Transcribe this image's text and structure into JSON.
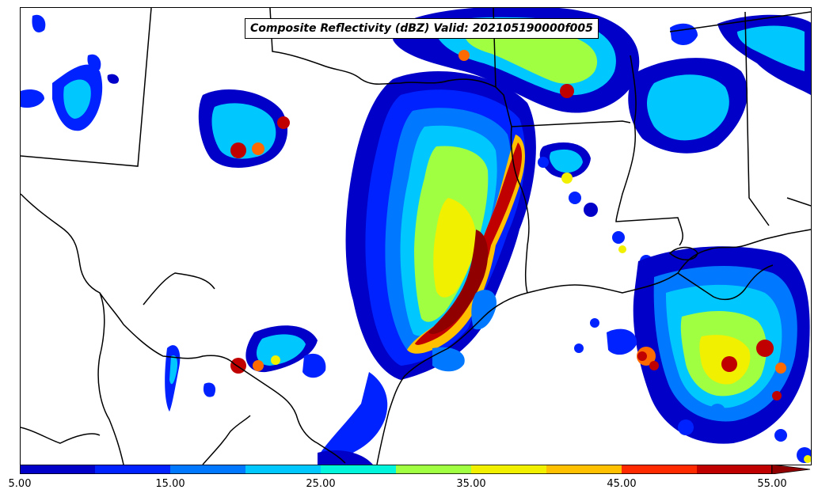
{
  "title": "Composite Reflectivity (dBZ) Valid: 202105190000f005",
  "colorbar": {
    "tick_labels": [
      "5.00",
      "15.00",
      "25.00",
      "35.00",
      "45.00",
      "55.00"
    ],
    "colors": [
      "#0000c8",
      "#0022ff",
      "#0078ff",
      "#00c8ff",
      "#00f5dc",
      "#40ff90",
      "#a0ff40",
      "#f0f000",
      "#ffc000",
      "#ff6a00",
      "#ff2a00",
      "#c00000",
      "#900000"
    ],
    "extend": "max"
  },
  "map": {
    "projection_note": "",
    "border_color": "#000000",
    "background_color": "#ffffff"
  }
}
